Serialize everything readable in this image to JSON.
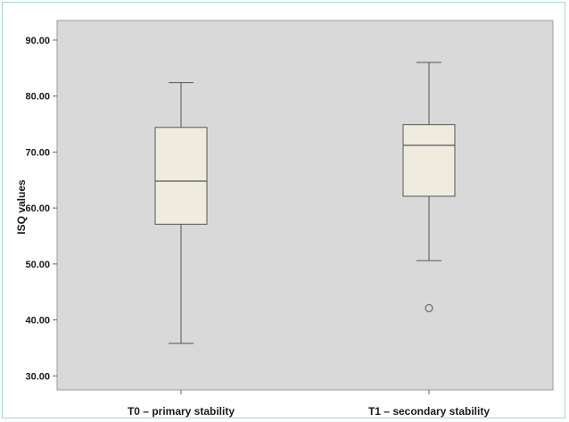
{
  "chart_data": {
    "type": "box",
    "title": "",
    "xlabel": "",
    "ylabel": "ISQ values",
    "ylim": [
      27.5,
      93.5
    ],
    "yticks": [
      30,
      40,
      50,
      60,
      70,
      80,
      90
    ],
    "ytick_labels": [
      "30.00",
      "40.00",
      "50.00",
      "60.00",
      "70.00",
      "80.00",
      "90.00"
    ],
    "grid": false,
    "colors": {
      "plot_bg": "#d9d9d9",
      "box_fill": "#efecdf",
      "stroke": "#555555"
    },
    "categories": [
      "T0 – primary stability",
      "T1 – secondary stability"
    ],
    "boxes": [
      {
        "whisker_low": 35.8,
        "q1": 57.1,
        "median": 64.8,
        "q3": 74.4,
        "whisker_high": 82.4,
        "outliers": []
      },
      {
        "whisker_low": 50.6,
        "q1": 62.1,
        "median": 71.2,
        "q3": 74.9,
        "whisker_high": 86.0,
        "outliers": [
          42.1
        ]
      }
    ]
  }
}
